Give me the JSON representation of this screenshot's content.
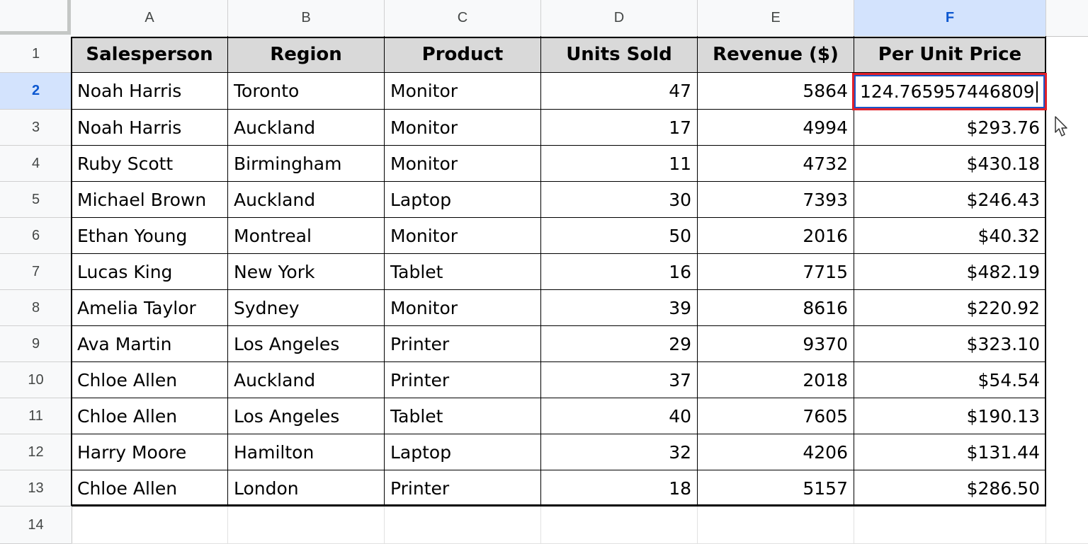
{
  "columns": [
    "A",
    "B",
    "C",
    "D",
    "E",
    "F"
  ],
  "selected_column": "F",
  "row_numbers": [
    "1",
    "2",
    "3",
    "4",
    "5",
    "6",
    "7",
    "8",
    "9",
    "10",
    "11",
    "12",
    "13",
    "14"
  ],
  "selected_row": "2",
  "table": {
    "headers": [
      "Salesperson",
      "Region",
      "Product",
      "Units Sold",
      "Revenue ($)",
      "Per Unit Price"
    ],
    "rows": [
      [
        "Noah Harris",
        "Toronto",
        "Monitor",
        "47",
        "5864",
        "124.765957446809"
      ],
      [
        "Noah Harris",
        "Auckland",
        "Monitor",
        "17",
        "4994",
        "$293.76"
      ],
      [
        "Ruby Scott",
        "Birmingham",
        "Monitor",
        "11",
        "4732",
        "$430.18"
      ],
      [
        "Michael Brown",
        "Auckland",
        "Laptop",
        "30",
        "7393",
        "$246.43"
      ],
      [
        "Ethan Young",
        "Montreal",
        "Monitor",
        "50",
        "2016",
        "$40.32"
      ],
      [
        "Lucas King",
        "New York",
        "Tablet",
        "16",
        "7715",
        "$482.19"
      ],
      [
        "Amelia Taylor",
        "Sydney",
        "Monitor",
        "39",
        "8616",
        "$220.92"
      ],
      [
        "Ava Martin",
        "Los Angeles",
        "Printer",
        "29",
        "9370",
        "$323.10"
      ],
      [
        "Chloe Allen",
        "Auckland",
        "Printer",
        "37",
        "2018",
        "$54.54"
      ],
      [
        "Chloe Allen",
        "Los Angeles",
        "Tablet",
        "40",
        "7605",
        "$190.13"
      ],
      [
        "Harry Moore",
        "Hamilton",
        "Laptop",
        "32",
        "4206",
        "$131.44"
      ],
      [
        "Chloe Allen",
        "London",
        "Printer",
        "18",
        "5157",
        "$286.50"
      ]
    ]
  },
  "active_cell": {
    "value": "124.765957446809",
    "highlight_color": "#e0202a",
    "edit_border_color": "#1a56c8"
  },
  "colors": {
    "header_fill": "#d9d9d9",
    "selected_header": "#d3e3fd"
  },
  "icons": [
    "mouse-pointer-icon"
  ]
}
